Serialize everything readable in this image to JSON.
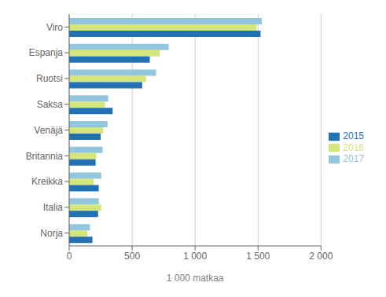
{
  "chart_data": {
    "type": "bar",
    "orientation": "horizontal",
    "categories": [
      "Viro",
      "Espanja",
      "Ruotsi",
      "Saksa",
      "Venäjä",
      "Britannia",
      "Kreikka",
      "Italia",
      "Norja"
    ],
    "series": [
      {
        "name": "2017",
        "color": "#92c5de",
        "values": [
          1530,
          790,
          690,
          310,
          305,
          265,
          255,
          235,
          165
        ]
      },
      {
        "name": "2016",
        "color": "#d4e57a",
        "values": [
          1490,
          720,
          610,
          285,
          270,
          215,
          195,
          255,
          145
        ]
      },
      {
        "name": "2015",
        "color": "#2171b5",
        "values": [
          1520,
          640,
          580,
          345,
          250,
          210,
          235,
          230,
          185
        ]
      }
    ],
    "xlabel": "1 000 matkaa",
    "xlim": [
      0,
      2000
    ],
    "xticks": [
      0,
      500,
      {
        "value": 1000,
        "label": "1 000"
      },
      {
        "value": 1500,
        "label": "1 500"
      },
      {
        "value": 2000,
        "label": "2 000"
      }
    ],
    "grid": true,
    "legend": "right"
  }
}
